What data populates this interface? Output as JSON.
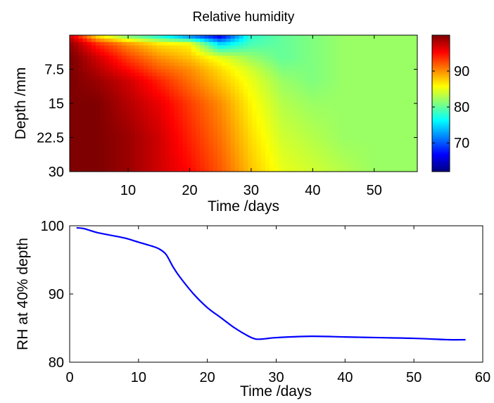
{
  "chart_data": [
    {
      "type": "heatmap",
      "title": "Relative humidity",
      "xlabel": "Time /days",
      "ylabel": "Depth /mm",
      "xlim": [
        0.5,
        57
      ],
      "ylim": [
        0,
        30
      ],
      "y_reversed": true,
      "xticks": [
        10,
        20,
        30,
        40,
        50
      ],
      "yticks": [
        7.5,
        15,
        22.5,
        30
      ],
      "colorbar": {
        "clim": [
          62,
          100
        ],
        "ticks": [
          70,
          80,
          90
        ],
        "colormap": "jet"
      },
      "x": [
        1,
        5,
        10,
        15,
        20,
        25,
        30,
        35,
        40,
        45,
        50,
        57
      ],
      "depth": [
        0,
        2,
        5,
        7.5,
        10,
        15,
        22.5,
        30
      ],
      "z": [
        [
          96,
          86,
          80,
          76,
          70,
          65,
          78,
          80,
          81,
          82,
          82,
          82
        ],
        [
          99,
          94,
          90,
          87,
          86,
          75,
          79,
          80,
          81,
          82,
          82,
          82
        ],
        [
          100,
          97,
          93,
          90,
          88,
          85,
          82,
          80,
          81,
          82,
          82,
          82
        ],
        [
          100,
          98,
          95,
          92,
          90,
          87,
          84,
          81,
          81,
          82,
          82,
          82
        ],
        [
          100,
          99,
          97,
          94,
          91,
          88,
          85,
          82,
          81,
          82,
          82,
          82
        ],
        [
          100,
          100,
          98,
          96,
          93,
          90,
          86,
          83,
          82,
          82,
          82,
          82
        ],
        [
          100,
          100,
          99,
          97,
          94,
          91,
          87,
          84,
          83,
          82,
          82,
          82
        ],
        [
          100,
          100,
          99,
          97,
          95,
          92,
          88,
          85,
          84,
          83,
          82,
          82
        ]
      ]
    },
    {
      "type": "line",
      "title": "",
      "xlabel": "Time /days",
      "ylabel": "RH at 40% depth",
      "xlim": [
        0,
        60
      ],
      "ylim": [
        80,
        100
      ],
      "xticks": [
        0,
        10,
        20,
        30,
        40,
        50,
        60
      ],
      "yticks": [
        80,
        90,
        100
      ],
      "color": "#0000ff",
      "x": [
        1,
        2,
        3,
        4,
        6,
        8,
        10,
        12,
        13,
        14,
        15,
        16,
        18,
        20,
        22,
        24,
        26,
        27,
        28,
        30,
        35,
        40,
        45,
        50,
        55,
        57.5
      ],
      "y": [
        99.7,
        99.6,
        99.3,
        99.0,
        98.6,
        98.2,
        97.6,
        97.0,
        96.6,
        95.8,
        94.0,
        92.5,
        90.0,
        88.0,
        86.5,
        85.0,
        83.8,
        83.4,
        83.4,
        83.6,
        83.8,
        83.7,
        83.6,
        83.5,
        83.3,
        83.3
      ]
    }
  ]
}
